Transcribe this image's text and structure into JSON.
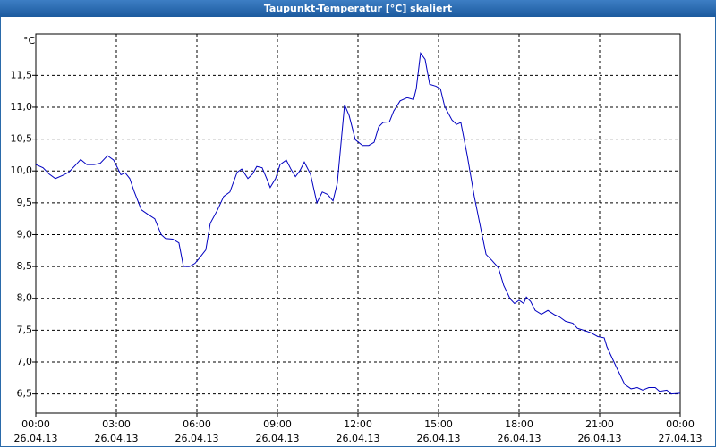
{
  "chart_data": {
    "type": "line",
    "title": "Taupunkt-Temperatur [°C] skaliert",
    "y_label": "°C",
    "color": "#0000c0",
    "grid": true,
    "xlim": [
      0,
      24
    ],
    "ylim": [
      6.2,
      12.15
    ],
    "xticks": [
      {
        "value": 0,
        "label": "00:00"
      },
      {
        "value": 3,
        "label": "03:00"
      },
      {
        "value": 6,
        "label": "06:00"
      },
      {
        "value": 9,
        "label": "09:00"
      },
      {
        "value": 12,
        "label": "12:00"
      },
      {
        "value": 15,
        "label": "15:00"
      },
      {
        "value": 18,
        "label": "18:00"
      },
      {
        "value": 21,
        "label": "21:00"
      },
      {
        "value": 24,
        "label": "00:00"
      }
    ],
    "xtick_dates": [
      "26.04.13",
      "26.04.13",
      "26.04.13",
      "26.04.13",
      "26.04.13",
      "26.04.13",
      "26.04.13",
      "26.04.13",
      "27.04.13"
    ],
    "yticks": [
      {
        "value": 6.5,
        "label": "6,5"
      },
      {
        "value": 7.0,
        "label": "7,0"
      },
      {
        "value": 7.5,
        "label": "7,5"
      },
      {
        "value": 8.0,
        "label": "8,0"
      },
      {
        "value": 8.5,
        "label": "8,5"
      },
      {
        "value": 9.0,
        "label": "9,0"
      },
      {
        "value": 9.5,
        "label": "9,5"
      },
      {
        "value": 10.0,
        "label": "10,0"
      },
      {
        "value": 10.5,
        "label": "10,5"
      },
      {
        "value": 11.0,
        "label": "11,0"
      },
      {
        "value": 11.5,
        "label": "11,5"
      }
    ],
    "x": [
      0,
      0.27,
      0.5,
      0.73,
      1.0,
      1.23,
      1.5,
      1.67,
      1.9,
      2.17,
      2.4,
      2.67,
      2.9,
      3.17,
      3.33,
      3.5,
      3.67,
      3.93,
      4.17,
      4.43,
      4.67,
      4.83,
      5.1,
      5.33,
      5.5,
      5.73,
      5.93,
      6.07,
      6.33,
      6.5,
      6.77,
      7.0,
      7.23,
      7.5,
      7.67,
      7.9,
      8.07,
      8.23,
      8.43,
      8.6,
      8.73,
      8.93,
      9.1,
      9.33,
      9.5,
      9.67,
      9.83,
      10.0,
      10.23,
      10.47,
      10.67,
      10.87,
      11.07,
      11.23,
      11.5,
      11.67,
      11.9,
      12.17,
      12.4,
      12.6,
      12.77,
      12.93,
      13.17,
      13.33,
      13.57,
      13.83,
      14.07,
      14.17,
      14.33,
      14.5,
      14.67,
      14.9,
      15.07,
      15.23,
      15.5,
      15.67,
      15.83,
      16.07,
      16.33,
      16.6,
      16.77,
      17.0,
      17.23,
      17.43,
      17.67,
      17.83,
      18.0,
      18.17,
      18.27,
      18.43,
      18.6,
      18.83,
      19.07,
      19.33,
      19.5,
      19.73,
      20.0,
      20.17,
      20.4,
      20.67,
      20.93,
      21.17,
      21.27,
      21.6,
      21.93,
      22.17,
      22.4,
      22.6,
      22.83,
      23.07,
      23.23,
      23.5,
      23.67,
      24.0
    ],
    "values": [
      10.1,
      10.05,
      9.95,
      9.88,
      9.93,
      9.98,
      10.1,
      10.18,
      10.1,
      10.1,
      10.12,
      10.24,
      10.17,
      9.94,
      9.97,
      9.88,
      9.67,
      9.39,
      9.32,
      9.25,
      9.0,
      8.94,
      8.93,
      8.87,
      8.5,
      8.5,
      8.55,
      8.62,
      8.76,
      9.18,
      9.39,
      9.6,
      9.67,
      9.98,
      10.03,
      9.88,
      9.95,
      10.07,
      10.05,
      9.88,
      9.74,
      9.88,
      10.1,
      10.17,
      10.03,
      9.91,
      10.0,
      10.14,
      9.95,
      9.5,
      9.67,
      9.63,
      9.53,
      9.81,
      11.04,
      10.87,
      10.49,
      10.4,
      10.4,
      10.45,
      10.69,
      10.76,
      10.77,
      10.94,
      11.1,
      11.15,
      11.12,
      11.29,
      11.85,
      11.75,
      11.36,
      11.33,
      11.29,
      11.01,
      10.8,
      10.73,
      10.76,
      10.24,
      9.6,
      9.04,
      8.69,
      8.59,
      8.48,
      8.2,
      7.99,
      7.92,
      7.97,
      7.92,
      8.02,
      7.95,
      7.81,
      7.75,
      7.81,
      7.74,
      7.71,
      7.64,
      7.61,
      7.53,
      7.5,
      7.46,
      7.4,
      7.38,
      7.24,
      6.94,
      6.65,
      6.58,
      6.6,
      6.56,
      6.6,
      6.6,
      6.54,
      6.56,
      6.5,
      6.51
    ]
  }
}
